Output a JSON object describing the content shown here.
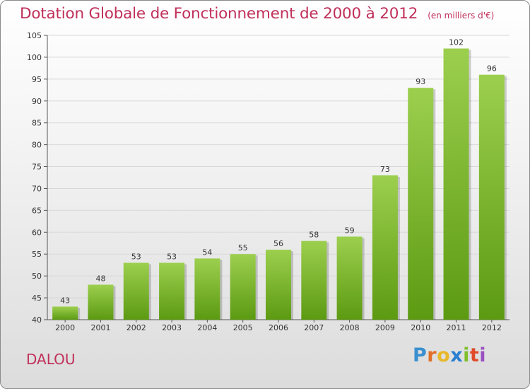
{
  "title": "Dotation Globale de Fonctionnement de 2000 à 2012",
  "unit": "(en milliers d'€)",
  "commune": "DALOU",
  "logo": {
    "text": "Proxiti",
    "letters": [
      {
        "char": "P",
        "color": "#3a8fd0"
      },
      {
        "char": "r",
        "color": "#e0702a"
      },
      {
        "char": "o",
        "color": "#e8b82a"
      },
      {
        "char": "x",
        "color": "#2a7fd0"
      },
      {
        "char": "i",
        "color": "#7fbf2a"
      },
      {
        "char": "t",
        "color": "#e04a2a"
      },
      {
        "char": "i",
        "color": "#9a4fc0"
      }
    ]
  },
  "colors": {
    "accent": "#c0305a",
    "bar_top": "#9ccf4e",
    "bar_bottom": "#5c9a12"
  },
  "chart_data": {
    "type": "bar",
    "categories": [
      "2000",
      "2001",
      "2002",
      "2003",
      "2004",
      "2005",
      "2006",
      "2007",
      "2008",
      "2009",
      "2010",
      "2011",
      "2012"
    ],
    "values": [
      43,
      48,
      53,
      53,
      54,
      55,
      56,
      58,
      59,
      73,
      93,
      102,
      96
    ],
    "ylim": [
      40,
      105
    ],
    "yticks": [
      40,
      45,
      50,
      55,
      60,
      65,
      70,
      75,
      80,
      85,
      90,
      95,
      100,
      105
    ],
    "grid": true
  }
}
